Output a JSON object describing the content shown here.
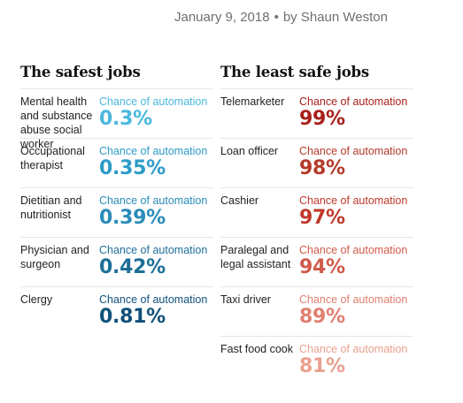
{
  "meta": {
    "date": "January 9, 2018",
    "separator": "•",
    "byline": "by Shaun Weston"
  },
  "safest": {
    "title": "The safest jobs",
    "chance_label": "Chance of automation",
    "items": [
      {
        "job": "Mental health and substance abuse social worker",
        "value": "0.3%",
        "color": "#4bb8dc"
      },
      {
        "job": "Occupational therapist",
        "value": "0.35%",
        "color": "#2e9cc8"
      },
      {
        "job": "Dietitian and nutritionist",
        "value": "0.39%",
        "color": "#2a8cb8"
      },
      {
        "job": "Physician and surgeon",
        "value": "0.42%",
        "color": "#1d6f98"
      },
      {
        "job": "Clergy",
        "value": "0.81%",
        "color": "#10507a"
      }
    ]
  },
  "least_safe": {
    "title": "The least safe jobs",
    "chance_label": "Chance of automation",
    "items": [
      {
        "job": "Telemarketer",
        "value": "99%",
        "color": "#a8201a"
      },
      {
        "job": "Loan officer",
        "value": "98%",
        "color": "#b53a2a"
      },
      {
        "job": "Cashier",
        "value": "97%",
        "color": "#c0392b"
      },
      {
        "job": "Paralegal and legal assistant",
        "value": "94%",
        "color": "#d05a4a"
      },
      {
        "job": "Taxi driver",
        "value": "89%",
        "color": "#e07f70"
      },
      {
        "job": "Fast food cook",
        "value": "81%",
        "color": "#eaa090"
      }
    ]
  }
}
